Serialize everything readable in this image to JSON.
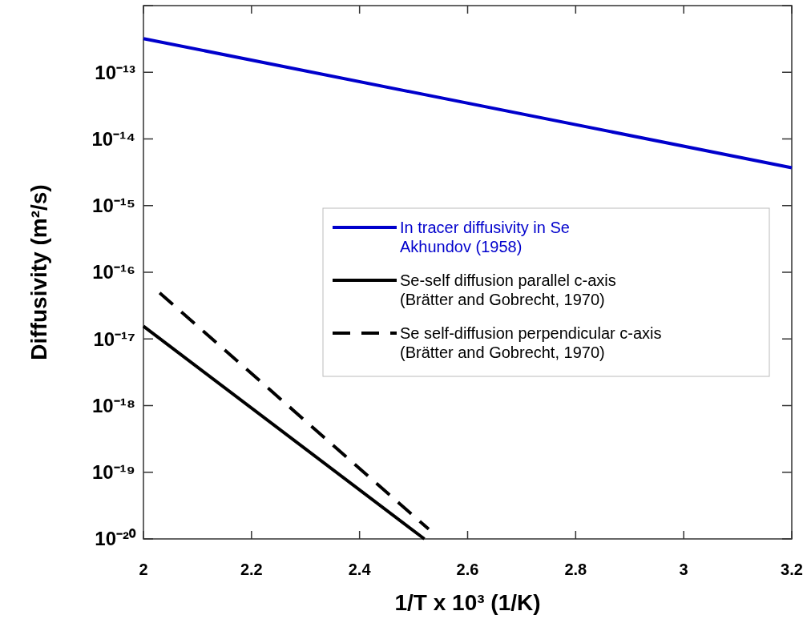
{
  "chart_data": {
    "type": "line",
    "xlabel": "1/T x 10³ (1/K)",
    "ylabel": "Diffusivity (m²/s)",
    "log": "y",
    "xlim": [
      2,
      3.2
    ],
    "xticks": [
      2,
      2.2,
      2.4,
      2.6,
      2.8,
      3,
      3.2
    ],
    "ylim": [
      1e-20,
      1e-12
    ],
    "yticks": [
      {
        "value": 1e-20,
        "label": "10⁻²⁰"
      },
      {
        "value": 1e-19,
        "label": "10⁻¹⁹"
      },
      {
        "value": 1e-18,
        "label": "10⁻¹⁸"
      },
      {
        "value": 1e-17,
        "label": "10⁻¹⁷"
      },
      {
        "value": 1e-16,
        "label": "10⁻¹⁶"
      },
      {
        "value": 1e-15,
        "label": "10⁻¹⁵"
      },
      {
        "value": 1e-14,
        "label": "10⁻¹⁴"
      },
      {
        "value": 1e-13,
        "label": "10⁻¹³"
      },
      {
        "value": 1e-12,
        "label": null
      }
    ],
    "grid": false,
    "legend": "right",
    "marker": "none",
    "series": [
      {
        "name": "In tracer diffusivity in Se\nAkhundov (1958)",
        "color": "#0000cc",
        "x": [
          2,
          3.2
        ],
        "values": [
          3.2e-13,
          3.7e-15
        ],
        "line_style": "solid"
      },
      {
        "name": "Se-self diffusion parallel c-axis\n(Brätter and Gobrecht, 1970)",
        "color": "#000000",
        "x": [
          2,
          2.52
        ],
        "values": [
          1.55e-17,
          1e-20
        ],
        "line_style": "solid"
      },
      {
        "name": "Se self-diffusion perpendicular c-axis\n(Brätter and Gobrecht, 1970)",
        "color": "#000000",
        "x": [
          2.03,
          2.528
        ],
        "values": [
          4.9e-17,
          1.4e-20
        ],
        "line_style": "dashed"
      }
    ]
  }
}
